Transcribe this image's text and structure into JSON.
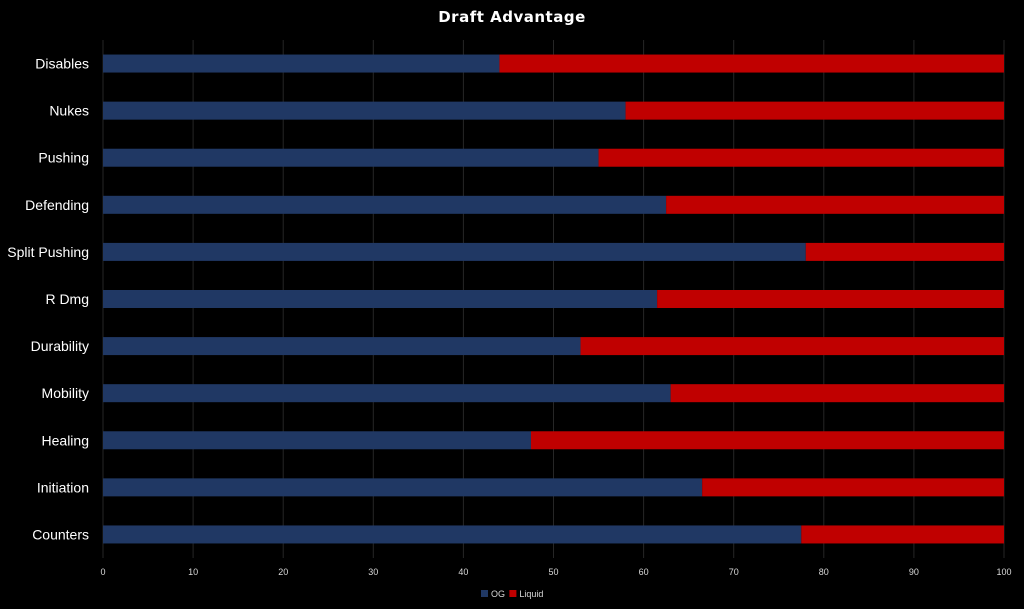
{
  "chart_data": {
    "type": "bar",
    "orientation": "horizontal",
    "stacked": true,
    "title": "Draft Advantage",
    "xlabel": "",
    "ylabel": "",
    "xlim": [
      0,
      100
    ],
    "x_ticks": [
      0,
      10,
      20,
      30,
      40,
      50,
      60,
      70,
      80,
      90,
      100
    ],
    "grid": true,
    "legend_position": "bottom",
    "categories": [
      "Disables",
      "Nukes",
      "Pushing",
      "Defending",
      "Split Pushing",
      "R Dmg",
      "Durability",
      "Mobility",
      "Healing",
      "Initiation",
      "Counters"
    ],
    "series": [
      {
        "name": "OG",
        "color": "#203864",
        "values": [
          44,
          58,
          55,
          62.5,
          78,
          61.5,
          53,
          63,
          47.5,
          66.5,
          77.5
        ]
      },
      {
        "name": "Liquid",
        "color": "#c00000",
        "values": [
          56,
          42,
          45,
          37.5,
          22,
          38.5,
          47,
          37,
          52.5,
          33.5,
          22.5
        ]
      }
    ]
  }
}
